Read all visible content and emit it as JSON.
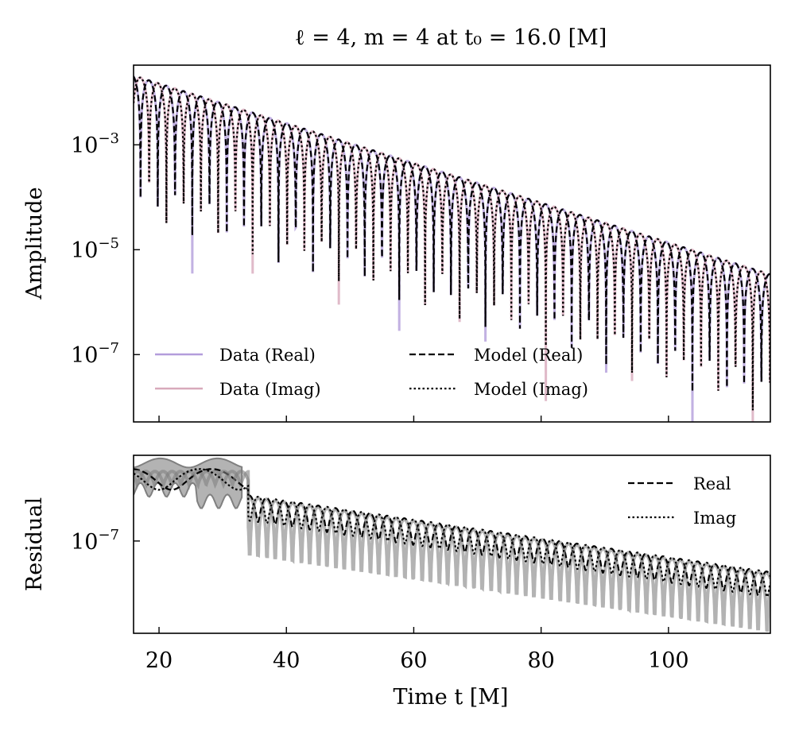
{
  "chart_data": [
    {
      "type": "line",
      "title": "ℓ = 4, m = 4 at t₀ = 16.0 [M]",
      "xlabel": "",
      "ylabel": "Amplitude",
      "xlim": [
        16,
        116
      ],
      "ylim": [
        5.2e-09,
        0.033
      ],
      "yscale": "log",
      "grid": false,
      "xticks": [
        20,
        40,
        60,
        80,
        100
      ],
      "yticks": [
        {
          "value": 0.001,
          "label": "10",
          "exp": "−3"
        },
        {
          "value": 1e-05,
          "label": "10",
          "exp": "−5"
        },
        {
          "value": 1e-07,
          "label": "10",
          "exp": "−7"
        }
      ],
      "legend": {
        "placement": "lower-left",
        "columns": 2
      },
      "series": [
        {
          "name": "Data (Real)",
          "color": "#b39ddb",
          "style": "solid",
          "component": "real",
          "amplitude_start": 0.021,
          "amplitude_end": 3.4e-06,
          "omega": 1.16,
          "phase": 0.3
        },
        {
          "name": "Data (Imag)",
          "color": "#d8a9bb",
          "style": "solid",
          "component": "imag",
          "amplitude_start": 0.021,
          "amplitude_end": 3.4e-06,
          "omega": 1.16,
          "phase": 0.3
        },
        {
          "name": "Model (Real)",
          "color": "#000000",
          "style": "dashed",
          "component": "real",
          "amplitude_start": 0.021,
          "amplitude_end": 3.4e-06,
          "omega": 1.16,
          "phase": 0.3
        },
        {
          "name": "Model (Imag)",
          "color": "#000000",
          "style": "dotted",
          "component": "imag",
          "amplitude_start": 0.021,
          "amplitude_end": 3.4e-06,
          "omega": 1.16,
          "phase": 0.3
        }
      ]
    },
    {
      "type": "line",
      "title": "",
      "xlabel": "Time t [M]",
      "ylabel": "Residual",
      "xlim": [
        16,
        116
      ],
      "ylim": [
        1.7e-09,
        4.4e-06
      ],
      "yscale": "log",
      "grid": false,
      "xticks": [
        20,
        40,
        60,
        80,
        100
      ],
      "yticks": [
        {
          "value": 1e-07,
          "label": "10",
          "exp": "−7"
        }
      ],
      "legend": {
        "placement": "upper-right",
        "columns": 1
      },
      "series": [
        {
          "name": "Real",
          "color": "#000000",
          "style": "dashed",
          "band_color": "#808080",
          "amplitude_start": 1.5e-06,
          "amplitude_end": 2.4e-08,
          "omega": 1.16,
          "phase": 0.9
        },
        {
          "name": "Imag",
          "color": "#000000",
          "style": "dotted",
          "band_color": "#808080",
          "amplitude_start": 1.5e-06,
          "amplitude_end": 2.4e-08,
          "omega": 1.16,
          "phase": 2.4
        }
      ]
    }
  ]
}
